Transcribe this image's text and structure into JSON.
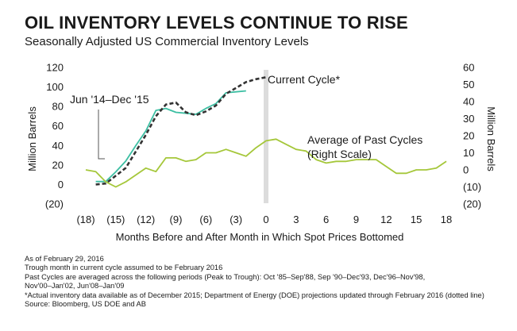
{
  "title": "OIL INVENTORY LEVELS CONTINUE TO RISE",
  "subtitle": "Seasonally Adjusted US Commercial Inventory Levels",
  "notes": [
    "As of February 29, 2016",
    "Trough month in current cycle assumed to be February 2016",
    "Past Cycles are averaged across the following periods (Peak to Trough): Oct '85–Sep'88, Sep '90–Dec'93, Dec'96–Nov'98,",
    "Nov'00–Jan'02, Jun'08–Jan'09",
    "*Actual inventory data available as of December 2015; Department of Energy (DOE) projections updated through February 2016 (dotted line)",
    "Source: Bloomberg, US DOE and AB"
  ],
  "chart_data": {
    "type": "line",
    "xlabel": "Months Before and After Month in Which Spot Prices Bottomed",
    "ylabel_left": "Million Barrels",
    "ylabel_right": "Million Barrels",
    "xlim": [
      -18,
      18
    ],
    "ylim_left": [
      -20,
      120
    ],
    "ylim_right": [
      -20,
      60
    ],
    "x_ticks": [
      -18,
      -15,
      -12,
      -9,
      -6,
      -3,
      0,
      3,
      6,
      9,
      12,
      15,
      18
    ],
    "x_tick_labels": [
      "(18)",
      "(15)",
      "(12)",
      "(9)",
      "(6)",
      "(3)",
      "0",
      "3",
      "6",
      "9",
      "12",
      "15",
      "18"
    ],
    "y_left_ticks": [
      -20,
      0,
      20,
      40,
      60,
      80,
      100,
      120
    ],
    "y_left_tick_labels": [
      "(20)",
      "0",
      "20",
      "40",
      "60",
      "80",
      "100",
      "120"
    ],
    "y_right_ticks": [
      -20,
      -10,
      0,
      10,
      20,
      30,
      40,
      50,
      60
    ],
    "y_right_tick_labels": [
      "(20)",
      "(10)",
      "0",
      "10",
      "20",
      "30",
      "40",
      "50",
      "60"
    ],
    "vertical_marker_x": 0,
    "series": [
      {
        "name": "Jun '14–Dec '15",
        "axis": "left",
        "color": "#3dbfa3",
        "style": "solid",
        "x": [
          -17,
          -16,
          -15,
          -14,
          -13,
          -12,
          -11,
          -10,
          -9,
          -8,
          -7,
          -6,
          -5,
          -4,
          -3,
          -2
        ],
        "y": [
          3,
          3,
          13,
          24,
          40,
          55,
          76,
          78,
          74,
          73,
          72,
          78,
          83,
          94,
          95,
          96
        ]
      },
      {
        "name": "Current Cycle*",
        "axis": "left",
        "color": "#333333",
        "style": "dashed",
        "x": [
          -17,
          -16,
          -15,
          -14,
          -13,
          -12,
          -11,
          -10,
          -9,
          -8,
          -7,
          -6,
          -5,
          -4,
          -3,
          -2,
          -1,
          0
        ],
        "y": [
          0,
          1,
          9,
          17,
          34,
          51,
          70,
          82,
          84,
          74,
          71,
          75,
          81,
          93,
          99,
          105,
          108,
          110
        ]
      },
      {
        "name": "Average of Past Cycles (Right Scale)",
        "axis": "right",
        "color": "#a5c73a",
        "style": "solid",
        "x": [
          -18,
          -17,
          -16,
          -15,
          -14,
          -13,
          -12,
          -11,
          -10,
          -9,
          -8,
          -7,
          -6,
          -5,
          -4,
          -3,
          -2,
          -1,
          0,
          1,
          2,
          3,
          4,
          5,
          6,
          7,
          8,
          9,
          10,
          11,
          12,
          13,
          14,
          15,
          16,
          17,
          18
        ],
        "y": [
          0,
          -1,
          -7,
          -10,
          -7,
          -3,
          1,
          -1,
          7,
          7,
          5,
          6,
          10,
          10,
          12,
          10,
          8,
          13,
          17,
          18,
          15,
          12,
          11,
          6,
          4,
          5,
          5,
          6,
          6,
          6,
          2,
          -2,
          -2,
          0,
          0,
          1,
          5
        ]
      }
    ],
    "annotations": [
      "Jun '14–Dec '15",
      "Current Cycle*",
      "Average of Past Cycles",
      "(Right Scale)"
    ]
  }
}
